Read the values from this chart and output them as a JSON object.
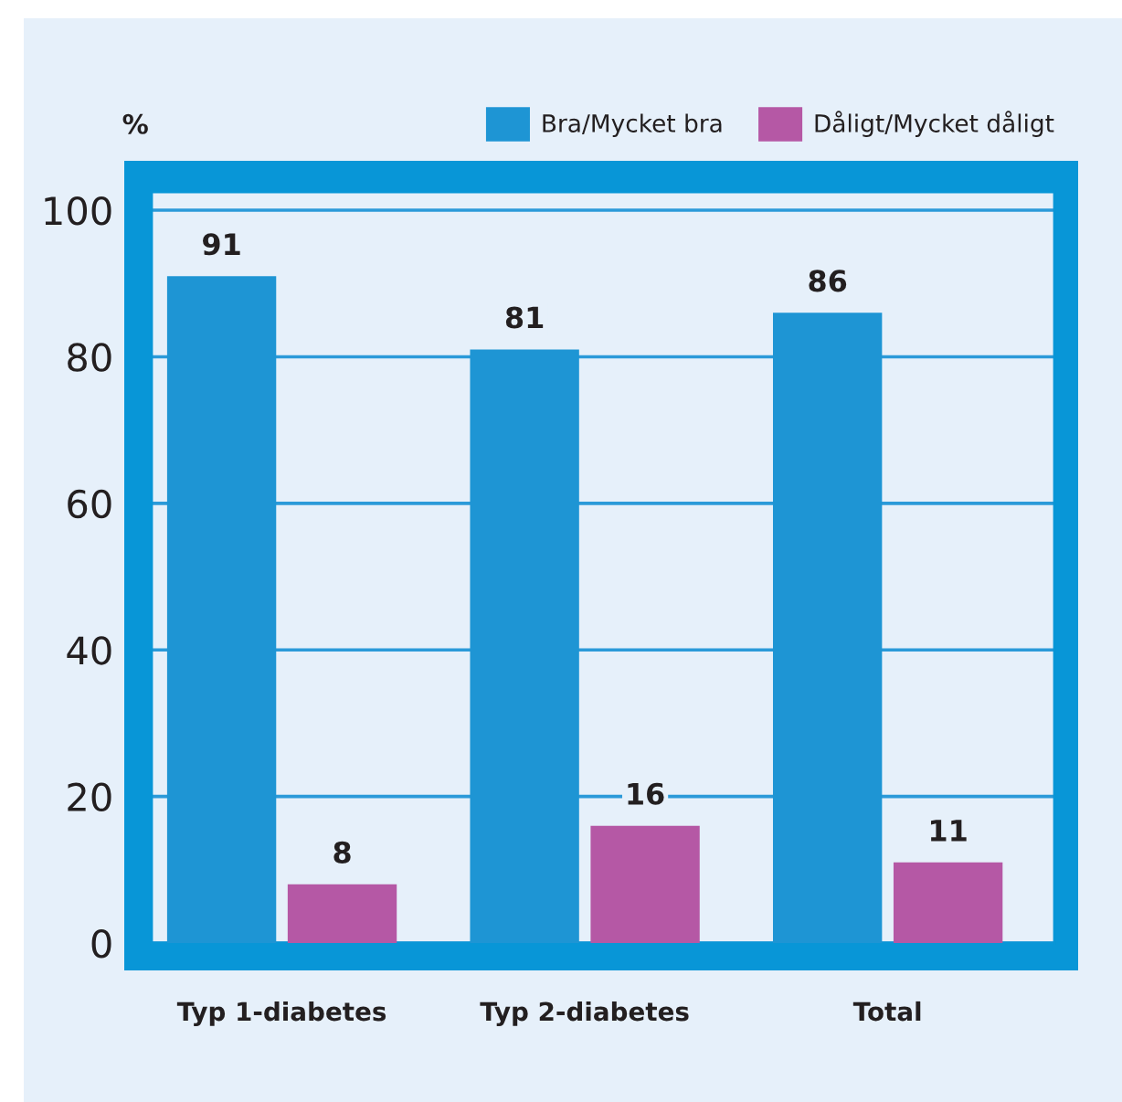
{
  "chart_data": {
    "type": "bar",
    "ylabel": "%",
    "categories": [
      "Typ 1-diabetes",
      "Typ 2-diabetes",
      "Total"
    ],
    "series": [
      {
        "name": "Bra/Mycket bra",
        "color": "#1e95d4",
        "values": [
          91,
          81,
          86
        ]
      },
      {
        "name": "Dåligt/Mycket dåligt",
        "color": "#b558a5",
        "values": [
          8,
          16,
          11
        ]
      }
    ],
    "ylim": [
      0,
      102.5
    ],
    "yticks": [
      0,
      20,
      40,
      60,
      80,
      100
    ],
    "grid": "y",
    "legend": "top right",
    "data_labels": true
  }
}
